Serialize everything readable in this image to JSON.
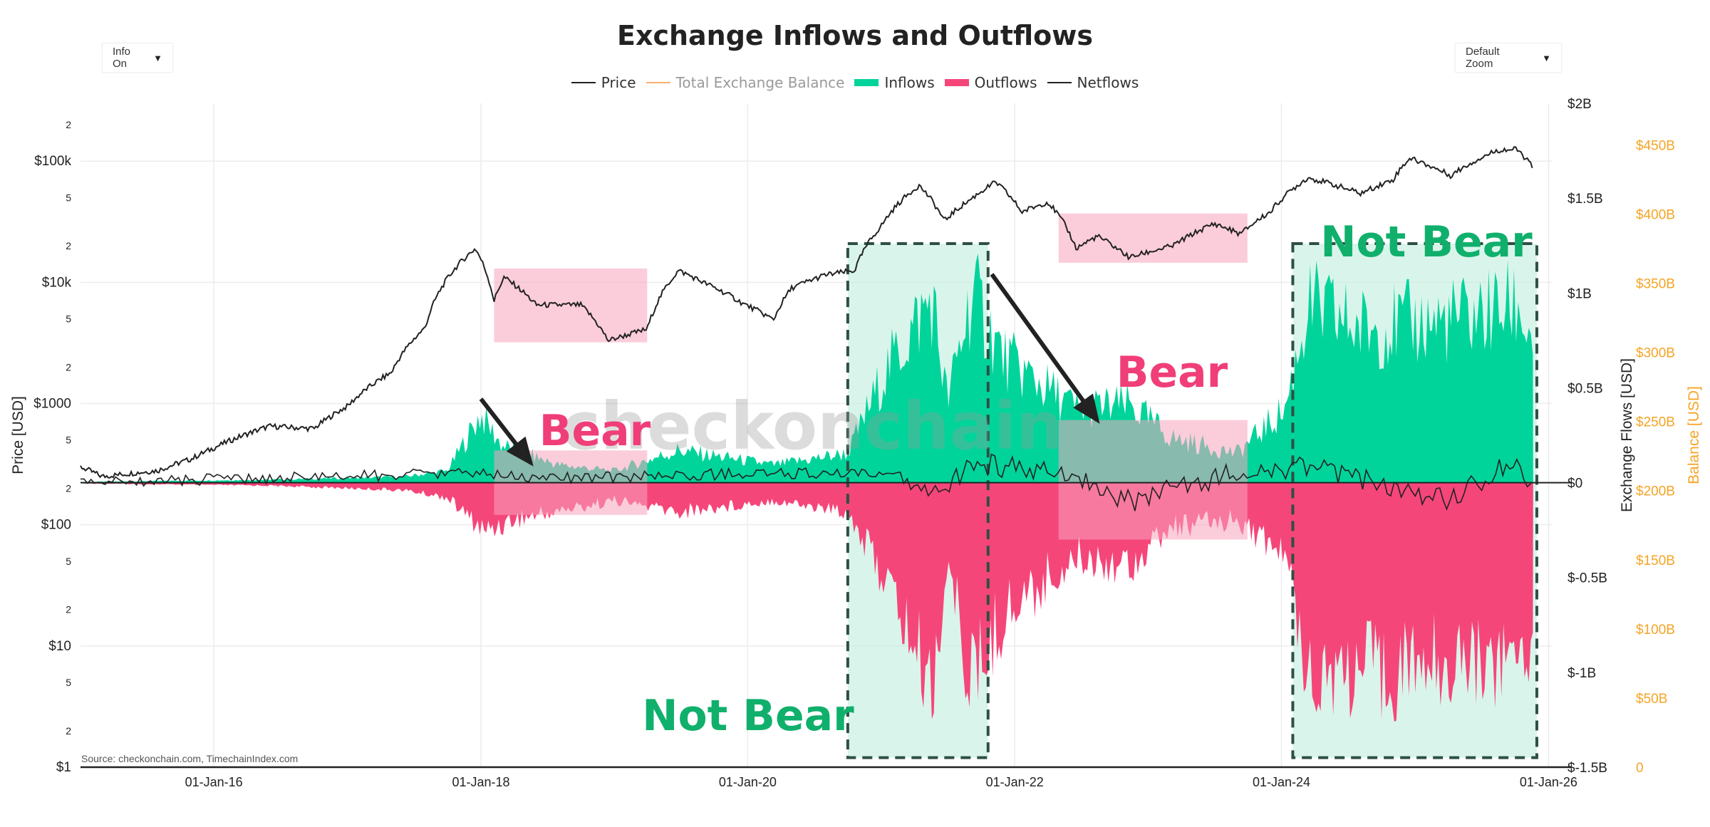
{
  "header": {
    "title": "Exchange Inflows and Outflows",
    "info_dropdown": "Info On",
    "zoom_dropdown": "Default Zoom",
    "dropdown_arrow": "▼"
  },
  "legend": [
    {
      "label": "Price",
      "color": "#222222",
      "kind": "line",
      "dim": false
    },
    {
      "label": "Total Exchange Balance",
      "color": "#f7b26a",
      "kind": "line",
      "dim": true
    },
    {
      "label": "Inflows",
      "color": "#00d49a",
      "kind": "box",
      "dim": false
    },
    {
      "label": "Outflows",
      "color": "#f5467a",
      "kind": "box",
      "dim": false
    },
    {
      "label": "Netflows",
      "color": "#222222",
      "kind": "line",
      "dim": false
    }
  ],
  "source": "Source: checkonchain.com, TimechainIndex.com",
  "watermark": "checkonchain",
  "colors": {
    "price": "#222222",
    "balance": "#f7b26a",
    "inflows": "#00d49a",
    "outflows": "#f5467a",
    "bear": "#f03e78",
    "not_bear": "#10b06c",
    "bear_box": "#f7a4be",
    "not_bear_box": "#bfeedd",
    "orange_axis": "#f5a425"
  },
  "chart_data": {
    "type": "area",
    "x_axis": {
      "ticks": [
        "01-Jan-16",
        "01-Jan-18",
        "01-Jan-20",
        "01-Jan-22",
        "01-Jan-24",
        "01-Jan-26"
      ],
      "range": [
        "2015-01-01",
        "2026-01-10"
      ]
    },
    "y_left": {
      "label": "Price [USD]",
      "scale": "log",
      "range": [
        1,
        300000
      ],
      "major_ticks": [
        {
          "v": 1,
          "t": "$1"
        },
        {
          "v": 10,
          "t": "$10"
        },
        {
          "v": 100,
          "t": "$100"
        },
        {
          "v": 1000,
          "t": "$1000"
        },
        {
          "v": 10000,
          "t": "$10k"
        },
        {
          "v": 100000,
          "t": "$100k"
        }
      ],
      "minor_ticks": [
        {
          "v": 2,
          "t": "2"
        },
        {
          "v": 5,
          "t": "5"
        },
        {
          "v": 20,
          "t": "2"
        },
        {
          "v": 50,
          "t": "5"
        },
        {
          "v": 200,
          "t": "2"
        },
        {
          "v": 500,
          "t": "5"
        },
        {
          "v": 2000,
          "t": "2"
        },
        {
          "v": 5000,
          "t": "5"
        },
        {
          "v": 20000,
          "t": "2"
        },
        {
          "v": 50000,
          "t": "5"
        },
        {
          "v": 200000,
          "t": "2"
        }
      ]
    },
    "y_right": {
      "label": "Exchange Flows [USD]",
      "range": [
        -1.5,
        2.0
      ],
      "ticks": [
        {
          "v": 2.0,
          "t": "$2B"
        },
        {
          "v": 1.5,
          "t": "$1.5B"
        },
        {
          "v": 1.0,
          "t": "$1B"
        },
        {
          "v": 0.5,
          "t": "$0.5B"
        },
        {
          "v": 0,
          "t": "$0"
        },
        {
          "v": -0.5,
          "t": "$-0.5B"
        },
        {
          "v": -1.0,
          "t": "$-1B"
        },
        {
          "v": -1.5,
          "t": "$-1.5B"
        }
      ]
    },
    "y_right2": {
      "label": "Balance [USD]",
      "range": [
        0,
        480
      ],
      "ticks": [
        {
          "v": 450,
          "t": "$450B"
        },
        {
          "v": 400,
          "t": "$400B"
        },
        {
          "v": 350,
          "t": "$350B"
        },
        {
          "v": 300,
          "t": "$300B"
        },
        {
          "v": 250,
          "t": "$250B"
        },
        {
          "v": 200,
          "t": "$200B"
        },
        {
          "v": 150,
          "t": "$150B"
        },
        {
          "v": 100,
          "t": "$100B"
        },
        {
          "v": 50,
          "t": "$50B"
        },
        {
          "v": 0,
          "t": "0"
        }
      ]
    },
    "series": [
      {
        "name": "Price",
        "y_axis": "left",
        "points": [
          [
            "2015-01-01",
            300
          ],
          [
            "2015-03-01",
            250
          ],
          [
            "2015-08-01",
            280
          ],
          [
            "2015-11-01",
            350
          ],
          [
            "2016-01-01",
            430
          ],
          [
            "2016-06-01",
            650
          ],
          [
            "2016-10-01",
            620
          ],
          [
            "2017-01-01",
            950
          ],
          [
            "2017-05-01",
            1800
          ],
          [
            "2017-08-01",
            4200
          ],
          [
            "2017-12-17",
            19000
          ],
          [
            "2018-02-06",
            7000
          ],
          [
            "2018-03-05",
            11000
          ],
          [
            "2018-06-01",
            6500
          ],
          [
            "2018-10-01",
            6500
          ],
          [
            "2018-12-15",
            3300
          ],
          [
            "2019-04-01",
            4100
          ],
          [
            "2019-06-26",
            12500
          ],
          [
            "2019-09-01",
            10000
          ],
          [
            "2019-12-18",
            6700
          ],
          [
            "2020-03-12",
            4900
          ],
          [
            "2020-05-01",
            9000
          ],
          [
            "2020-08-01",
            11500
          ],
          [
            "2020-10-20",
            12500
          ],
          [
            "2020-12-31",
            29000
          ],
          [
            "2021-04-14",
            63000
          ],
          [
            "2021-06-22",
            32000
          ],
          [
            "2021-09-01",
            48000
          ],
          [
            "2021-11-10",
            67000
          ],
          [
            "2022-01-20",
            38000
          ],
          [
            "2022-04-01",
            46000
          ],
          [
            "2022-06-18",
            19000
          ],
          [
            "2022-08-15",
            24000
          ],
          [
            "2022-11-10",
            16000
          ],
          [
            "2023-03-10",
            20000
          ],
          [
            "2023-07-01",
            30500
          ],
          [
            "2023-09-11",
            25000
          ],
          [
            "2023-12-01",
            38000
          ],
          [
            "2024-03-14",
            73000
          ],
          [
            "2024-08-05",
            54000
          ],
          [
            "2024-11-01",
            70000
          ],
          [
            "2024-12-17",
            106000
          ],
          [
            "2025-04-08",
            76000
          ],
          [
            "2025-08-14",
            123000
          ],
          [
            "2025-10-06",
            125000
          ],
          [
            "2025-11-20",
            88000
          ]
        ]
      },
      {
        "name": "Inflows",
        "y_axis": "right",
        "unit": "USD billions",
        "points": [
          [
            "2015-01-01",
            0.005
          ],
          [
            "2016-06-01",
            0.02
          ],
          [
            "2017-06-01",
            0.04
          ],
          [
            "2017-10-01",
            0.08
          ],
          [
            "2017-12-31",
            0.46
          ],
          [
            "2018-03-01",
            0.25
          ],
          [
            "2018-08-01",
            0.12
          ],
          [
            "2019-01-01",
            0.08
          ],
          [
            "2019-06-26",
            0.22
          ],
          [
            "2020-03-12",
            0.12
          ],
          [
            "2020-10-01",
            0.2
          ],
          [
            "2021-01-11",
            0.75
          ],
          [
            "2021-05-19",
            1.25
          ],
          [
            "2021-07-01",
            0.55
          ],
          [
            "2021-09-07",
            1.3
          ],
          [
            "2021-12-01",
            0.85
          ],
          [
            "2022-06-18",
            0.5
          ],
          [
            "2022-11-10",
            0.53
          ],
          [
            "2023-03-10",
            0.3
          ],
          [
            "2023-09-01",
            0.2
          ],
          [
            "2024-01-11",
            0.5
          ],
          [
            "2024-03-14",
            1.2
          ],
          [
            "2024-08-05",
            1.05
          ],
          [
            "2025-04-08",
            1.1
          ],
          [
            "2025-10-10",
            1.2
          ],
          [
            "2025-11-20",
            0.95
          ]
        ]
      },
      {
        "name": "Outflows",
        "y_axis": "right",
        "unit": "USD billions",
        "points": [
          [
            "2015-01-01",
            -0.005
          ],
          [
            "2016-06-01",
            -0.02
          ],
          [
            "2017-06-01",
            -0.05
          ],
          [
            "2017-10-01",
            -0.1
          ],
          [
            "2018-01-10",
            -0.33
          ],
          [
            "2018-04-01",
            -0.25
          ],
          [
            "2019-01-01",
            -0.12
          ],
          [
            "2019-06-26",
            -0.2
          ],
          [
            "2020-03-12",
            -0.12
          ],
          [
            "2020-10-01",
            -0.2
          ],
          [
            "2021-01-11",
            -0.65
          ],
          [
            "2021-05-19",
            -1.4
          ],
          [
            "2021-07-01",
            -0.55
          ],
          [
            "2021-09-07",
            -1.38
          ],
          [
            "2021-12-01",
            -0.9
          ],
          [
            "2022-06-18",
            -0.5
          ],
          [
            "2022-11-10",
            -0.55
          ],
          [
            "2023-03-10",
            -0.3
          ],
          [
            "2023-09-01",
            -0.25
          ],
          [
            "2024-01-11",
            -0.5
          ],
          [
            "2024-03-14",
            -1.25
          ],
          [
            "2024-08-05",
            -1.3
          ],
          [
            "2025-04-08",
            -1.2
          ],
          [
            "2025-10-10",
            -1.2
          ],
          [
            "2025-11-20",
            -1.0
          ]
        ]
      },
      {
        "name": "Netflows",
        "y_axis": "right",
        "unit": "USD billions",
        "points": [
          [
            "2015-01-01",
            0
          ],
          [
            "2017-12-31",
            0.05
          ],
          [
            "2018-06-01",
            0.02
          ],
          [
            "2020-03-12",
            0.05
          ],
          [
            "2021-01-11",
            0.04
          ],
          [
            "2021-05-19",
            -0.08
          ],
          [
            "2021-09-07",
            0.1
          ],
          [
            "2022-06-18",
            0.05
          ],
          [
            "2022-11-10",
            -0.1
          ],
          [
            "2023-09-01",
            0.05
          ],
          [
            "2024-03-14",
            0.08
          ],
          [
            "2025-04-08",
            -0.1
          ],
          [
            "2025-10-10",
            0.15
          ],
          [
            "2025-11-20",
            -0.1
          ]
        ]
      }
    ],
    "annotations": [
      {
        "text": "Bear",
        "kind": "bear"
      },
      {
        "text": "Bear",
        "kind": "bear"
      },
      {
        "text": "Not Bear",
        "kind": "not_bear"
      },
      {
        "text": "Not Bear",
        "kind": "not_bear"
      }
    ],
    "shaded_regions": [
      {
        "kind": "bear",
        "axis": "price",
        "x": [
          "2018-02-06",
          "2019-04-01"
        ],
        "y": [
          3200,
          13000
        ]
      },
      {
        "kind": "bear",
        "axis": "price",
        "x": [
          "2022-05-01",
          "2023-09-30"
        ],
        "y": [
          14500,
          37000
        ]
      },
      {
        "kind": "bear",
        "axis": "flows",
        "x": [
          "2018-02-06",
          "2019-04-01"
        ],
        "y": [
          -0.17,
          0.17
        ]
      },
      {
        "kind": "bear",
        "axis": "flows",
        "x": [
          "2022-05-01",
          "2023-09-30"
        ],
        "y": [
          -0.3,
          0.33
        ]
      },
      {
        "kind": "not_bear",
        "axis": "flows",
        "x": [
          "2020-10-01",
          "2021-10-20"
        ],
        "y": [
          -1.45,
          1.26
        ]
      },
      {
        "kind": "not_bear",
        "axis": "flows",
        "x": [
          "2024-02-01",
          "2025-11-30"
        ],
        "y": [
          -1.45,
          1.26
        ]
      }
    ],
    "grid": true,
    "legend_placement": "top-center"
  }
}
